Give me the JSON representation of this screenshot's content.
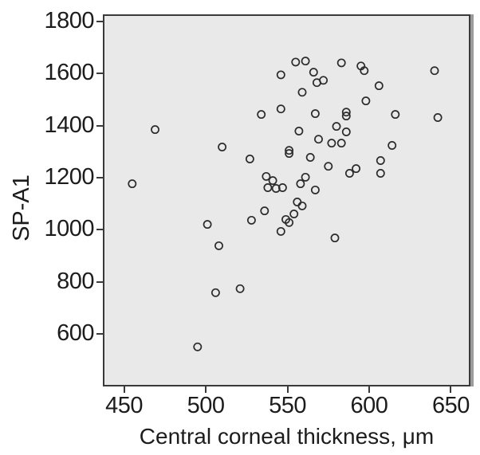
{
  "figure": {
    "x_axis_label": "Central corneal thickness, μm",
    "y_axis_label": "SP-A1"
  },
  "colors": {
    "plot_background": "#e9e9e9",
    "marker_stroke": "#2b2b2b",
    "axis_border": "#3a3a3a",
    "text": "#1c1c1c",
    "shadow": "#9b9b9b"
  },
  "chart_data": {
    "type": "scatter",
    "title": "",
    "xlabel": "Central corneal thickness, μm",
    "ylabel": "SP-A1",
    "xlim": [
      438,
      661
    ],
    "ylim": [
      405,
      1821
    ],
    "x_ticks": [
      450,
      500,
      550,
      600,
      650
    ],
    "y_ticks": [
      1800,
      1600,
      1400,
      1200,
      1000,
      800,
      600
    ],
    "grid": false,
    "legend": "none",
    "marker": "open-circle",
    "points": [
      [
        555,
        1644
      ],
      [
        561,
        1648
      ],
      [
        583,
        1641
      ],
      [
        595,
        1629
      ],
      [
        597,
        1611
      ],
      [
        640,
        1611
      ],
      [
        546,
        1595
      ],
      [
        566,
        1605
      ],
      [
        568,
        1565
      ],
      [
        572,
        1574
      ],
      [
        606,
        1553
      ],
      [
        598,
        1495
      ],
      [
        559,
        1528
      ],
      [
        534,
        1443
      ],
      [
        546,
        1464
      ],
      [
        567,
        1446
      ],
      [
        586,
        1452
      ],
      [
        586,
        1437
      ],
      [
        616,
        1443
      ],
      [
        642,
        1431
      ],
      [
        557,
        1379
      ],
      [
        569,
        1348
      ],
      [
        551,
        1305
      ],
      [
        551,
        1293
      ],
      [
        527,
        1272
      ],
      [
        564,
        1278
      ],
      [
        580,
        1397
      ],
      [
        586,
        1376
      ],
      [
        577,
        1333
      ],
      [
        583,
        1333
      ],
      [
        614,
        1324
      ],
      [
        607,
        1266
      ],
      [
        575,
        1244
      ],
      [
        592,
        1235
      ],
      [
        588,
        1217
      ],
      [
        607,
        1217
      ],
      [
        537,
        1205
      ],
      [
        541,
        1189
      ],
      [
        538,
        1162
      ],
      [
        543,
        1159
      ],
      [
        547,
        1162
      ],
      [
        561,
        1202
      ],
      [
        558,
        1177
      ],
      [
        567,
        1153
      ],
      [
        556,
        1107
      ],
      [
        559,
        1092
      ],
      [
        554,
        1061
      ],
      [
        549,
        1040
      ],
      [
        551,
        1028
      ],
      [
        546,
        994
      ],
      [
        528,
        1037
      ],
      [
        536,
        1073
      ],
      [
        501,
        1021
      ],
      [
        508,
        939
      ],
      [
        579,
        969
      ],
      [
        469,
        1385
      ],
      [
        510,
        1318
      ],
      [
        455,
        1177
      ],
      [
        506,
        759
      ],
      [
        521,
        774
      ],
      [
        495,
        551
      ]
    ]
  }
}
